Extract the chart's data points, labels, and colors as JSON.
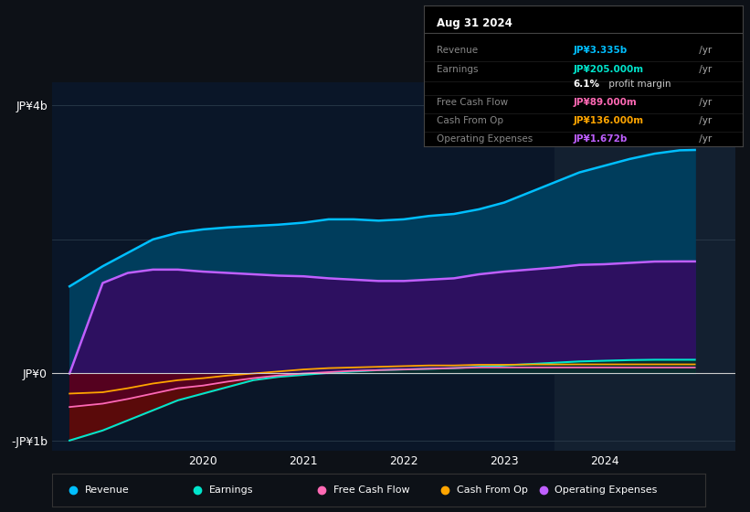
{
  "bg_color": "#0d1117",
  "chart_bg_color": "#0a1628",
  "ylabel_top": "JP¥4b",
  "ylabel_mid": "JP¥0",
  "ylabel_bot": "-JP¥1b",
  "ylim": [
    -1150000000.0,
    4350000000.0
  ],
  "xlim_start": 2018.5,
  "xlim_end": 2025.3,
  "xticks": [
    2020,
    2021,
    2022,
    2023,
    2024
  ],
  "info_box": {
    "title": "Aug 31 2024",
    "rows": [
      {
        "label": "Revenue",
        "value": "JP¥3.335b",
        "suffix": " /yr",
        "color": "#00bfff"
      },
      {
        "label": "Earnings",
        "value": "JP¥205.000m",
        "suffix": " /yr",
        "color": "#00e5cc"
      },
      {
        "label": "",
        "value": "6.1%",
        "suffix": " profit margin",
        "color": "#ffffff"
      },
      {
        "label": "Free Cash Flow",
        "value": "JP¥89.000m",
        "suffix": " /yr",
        "color": "#ff69b4"
      },
      {
        "label": "Cash From Op",
        "value": "JP¥136.000m",
        "suffix": " /yr",
        "color": "#ffa500"
      },
      {
        "label": "Operating Expenses",
        "value": "JP¥1.672b",
        "suffix": " /yr",
        "color": "#bf5fff"
      }
    ]
  },
  "legend": [
    {
      "label": "Revenue",
      "color": "#00bfff"
    },
    {
      "label": "Earnings",
      "color": "#00e5cc"
    },
    {
      "label": "Free Cash Flow",
      "color": "#ff69b4"
    },
    {
      "label": "Cash From Op",
      "color": "#ffa500"
    },
    {
      "label": "Operating Expenses",
      "color": "#bf5fff"
    }
  ],
  "series": {
    "x": [
      2018.67,
      2019.0,
      2019.25,
      2019.5,
      2019.75,
      2020.0,
      2020.25,
      2020.5,
      2020.75,
      2021.0,
      2021.25,
      2021.5,
      2021.75,
      2022.0,
      2022.25,
      2022.5,
      2022.75,
      2023.0,
      2023.25,
      2023.5,
      2023.75,
      2024.0,
      2024.25,
      2024.5,
      2024.75,
      2024.9
    ],
    "revenue": [
      1300000000,
      1600000000,
      1800000000,
      2000000000,
      2100000000,
      2150000000,
      2180000000,
      2200000000,
      2220000000,
      2250000000,
      2300000000,
      2300000000,
      2280000000,
      2300000000,
      2350000000,
      2380000000,
      2450000000,
      2550000000,
      2700000000,
      2850000000,
      3000000000,
      3100000000,
      3200000000,
      3280000000,
      3330000000,
      3335000000
    ],
    "op_expenses": [
      0,
      1350000000,
      1500000000,
      1550000000,
      1550000000,
      1520000000,
      1500000000,
      1480000000,
      1460000000,
      1450000000,
      1420000000,
      1400000000,
      1380000000,
      1380000000,
      1400000000,
      1420000000,
      1480000000,
      1520000000,
      1550000000,
      1580000000,
      1620000000,
      1630000000,
      1650000000,
      1670000000,
      1672000000,
      1672000000
    ],
    "earnings": [
      -1000000000,
      -850000000,
      -700000000,
      -550000000,
      -400000000,
      -300000000,
      -200000000,
      -100000000,
      -50000000,
      -20000000,
      10000000,
      30000000,
      50000000,
      60000000,
      70000000,
      80000000,
      100000000,
      120000000,
      140000000,
      160000000,
      180000000,
      190000000,
      200000000,
      205000000,
      205000000,
      205000000
    ],
    "fcf": [
      -500000000,
      -450000000,
      -380000000,
      -300000000,
      -220000000,
      -180000000,
      -120000000,
      -70000000,
      -30000000,
      0,
      20000000,
      40000000,
      50000000,
      60000000,
      70000000,
      80000000,
      90000000,
      90000000,
      90000000,
      90000000,
      90000000,
      90000000,
      89000000,
      89000000,
      89000000,
      89000000
    ],
    "cash_from_op": [
      -300000000,
      -280000000,
      -220000000,
      -150000000,
      -100000000,
      -70000000,
      -30000000,
      0,
      30000000,
      60000000,
      80000000,
      90000000,
      100000000,
      110000000,
      120000000,
      120000000,
      130000000,
      130000000,
      135000000,
      135000000,
      136000000,
      136000000,
      136000000,
      136000000,
      136000000,
      136000000
    ]
  },
  "highlight_x_start": 2023.5,
  "highlight_x_end": 2025.3
}
